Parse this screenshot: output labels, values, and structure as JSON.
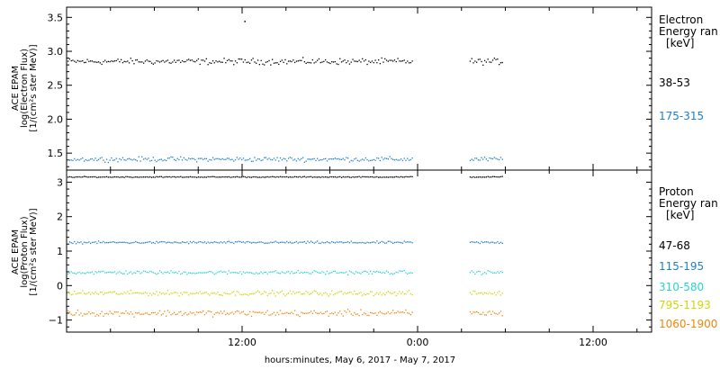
{
  "chart_data": [
    {
      "type": "scatter",
      "panel": "electron",
      "ylabel": [
        "ACE EPAM",
        "log(Electron Flux)",
        "[1/(cm²s ster MeV)]"
      ],
      "ylim": [
        1.25,
        3.65
      ],
      "yticks": [
        1.5,
        2.0,
        2.5,
        3.0,
        3.5
      ],
      "ytick_labels": [
        "1.5",
        "2.0",
        "2.5",
        "3.0",
        "3.5"
      ],
      "legend_title": [
        "Electron",
        "Energy ran",
        "[keV]"
      ],
      "outlier": {
        "x": 4.65,
        "y": 3.45
      },
      "series": [
        {
          "name": "38-53",
          "color": "#000000",
          "level": 2.85,
          "spread": 0.065
        },
        {
          "name": "175-315",
          "color": "#1e7fc6",
          "level": 1.41,
          "spread": 0.05
        }
      ]
    },
    {
      "type": "scatter",
      "panel": "proton",
      "ylabel": [
        "ACE EPAM",
        "log(Proton Flux)",
        "[1/(cm²s ster MeV)]"
      ],
      "ylim": [
        -1.35,
        3.35
      ],
      "yticks": [
        -1,
        0,
        1,
        2,
        3
      ],
      "ytick_labels": [
        "−1",
        "0",
        "1",
        "2",
        "3"
      ],
      "legend_title": [
        "Proton",
        "Energy ran",
        "[keV]"
      ],
      "series": [
        {
          "name": "47-68",
          "color": "#000000",
          "level": 3.15,
          "spread": 0.02
        },
        {
          "name": "115-195",
          "color": "#1e7fc6",
          "level": 1.25,
          "spread": 0.05
        },
        {
          "name": "310-580",
          "color": "#2ad4cc",
          "level": 0.38,
          "spread": 0.08
        },
        {
          "name": "795-1193",
          "color": "#cfd60a",
          "level": -0.22,
          "spread": 0.1
        },
        {
          "name": "1060-1900",
          "color": "#f0860a",
          "level": -0.8,
          "spread": 0.13
        }
      ]
    }
  ],
  "time_axis": {
    "xlim": [
      -7.5,
      32.5
    ],
    "ticks": [
      4.5,
      16.5,
      28.5
    ],
    "tick_labels": [
      "12:00",
      "0:00",
      "12:00"
    ],
    "data_segments": [
      [
        -7.5,
        16.2
      ],
      [
        20.0,
        22.3
      ]
    ],
    "xlabel": "hours:minutes, May  6, 2017 - May  7, 2017"
  }
}
